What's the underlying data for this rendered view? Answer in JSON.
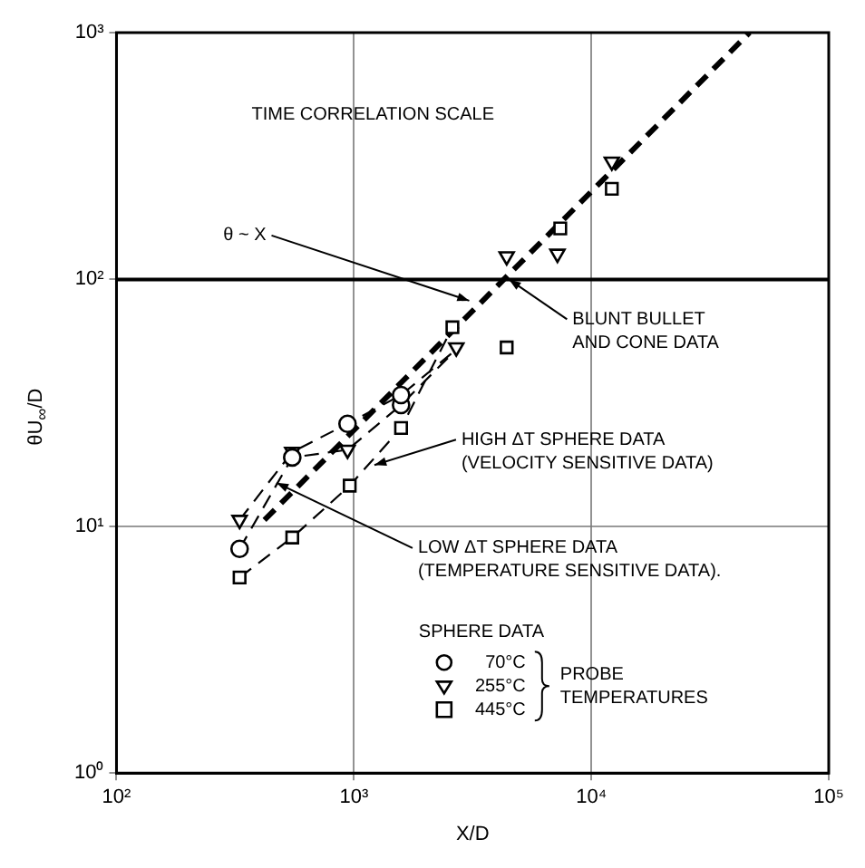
{
  "chart_data": {
    "type": "scatter",
    "xlabel": "X/D",
    "ylabel": "θU$_{∞}$/D",
    "log": "xy",
    "xlim": [
      100,
      100000
    ],
    "ylim": [
      1,
      1000
    ],
    "xticks": [
      {
        "value": 100,
        "label": "10²"
      },
      {
        "value": 1000,
        "label": "10³"
      },
      {
        "value": 10000,
        "label": "10⁴"
      },
      {
        "value": 100000,
        "label": "10⁵"
      }
    ],
    "yticks": [
      {
        "value": 1,
        "label": "10⁰"
      },
      {
        "value": 10,
        "label": "10¹"
      },
      {
        "value": 100,
        "label": "10²"
      },
      {
        "value": 1000,
        "label": "10³"
      }
    ],
    "grid": true,
    "legend": "bottom",
    "legend_title": "SPHERE DATA",
    "ref_lines": [
      {
        "axis": "y",
        "value": 100,
        "color": "#000000"
      }
    ],
    "annotations": [
      "TIME CORRELATION SCALE",
      {
        "text": "θ ~ X",
        "x": 3060,
        "y": 82
      },
      {
        "text": "BLUNT BULLET\nAND CONE DATA",
        "x": 4500,
        "y": 100
      },
      {
        "text": "HIGH ΔT SPHERE DATA\n(VELOCITY SENSITIVE DATA)",
        "x": 1220,
        "y": 17.7
      },
      {
        "text": "LOW ΔT SPHERE DATA\n(TEMPERATURE SENSITIVE DATA).",
        "x": 472,
        "y": 15
      },
      "PROBE TEMPERATURES"
    ],
    "series": [
      {
        "name": "70°C",
        "color": "#000000",
        "marker": "circle",
        "x": [
          330,
          550,
          940,
          1580,
          1580
        ],
        "values": [
          8.1,
          19,
          26,
          31,
          34
        ]
      },
      {
        "name": "255°C",
        "color": "#000000",
        "marker": "triangle",
        "x": [
          330,
          550,
          940,
          2700,
          4400,
          7200,
          12200
        ],
        "values": [
          10.6,
          20,
          20.4,
          53,
          124,
          127,
          300
        ]
      },
      {
        "name": "445°C",
        "color": "#000000",
        "marker": "square",
        "x": [
          330,
          550,
          960,
          1580,
          2600,
          4400,
          7400,
          12200
        ],
        "values": [
          6.2,
          9,
          14.6,
          25,
          64,
          53,
          161,
          233
        ]
      },
      {
        "type": "line",
        "color": "#000000",
        "line_style": "dashed",
        "marker": "none",
        "x": [
          420,
          46400
        ],
        "values": [
          10.6,
          1000
        ]
      },
      {
        "type": "line",
        "color": "#000000",
        "line_style": "dashed",
        "marker": "none",
        "x": [
          330,
          550,
          940,
          1580,
          2700
        ],
        "values": [
          10.6,
          20,
          26,
          34,
          52
        ]
      },
      {
        "type": "line",
        "color": "#000000",
        "line_style": "dashed",
        "marker": "none",
        "x": [
          330,
          550,
          940,
          1580,
          2700
        ],
        "values": [
          8.1,
          19,
          20.4,
          31,
          52
        ]
      },
      {
        "type": "line",
        "color": "#000000",
        "line_style": "dashed",
        "marker": "none",
        "x": [
          330,
          550,
          960,
          1580,
          2600
        ],
        "values": [
          6.2,
          9,
          14.6,
          25,
          64
        ]
      }
    ]
  }
}
